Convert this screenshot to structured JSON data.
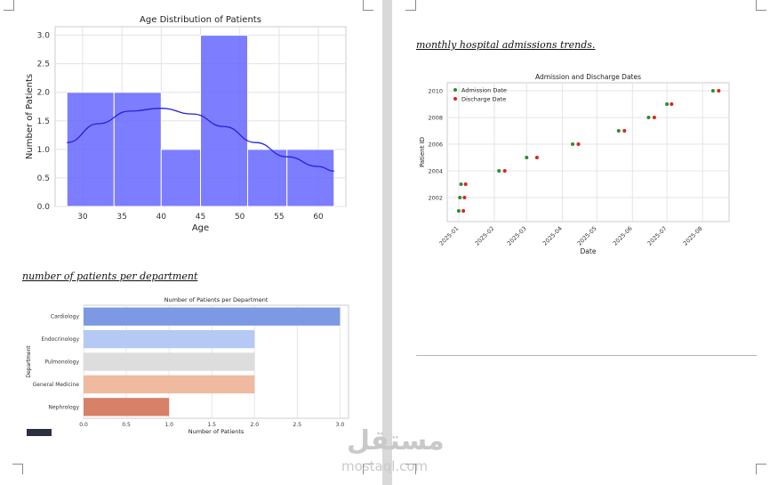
{
  "captions": {
    "admissions": "monthly hospital admissions trends.",
    "departments": "number of patients per department"
  },
  "watermark": {
    "arabic": "مستقل",
    "latin": "mostaql.com"
  },
  "chart_data": [
    {
      "type": "histogram",
      "title": "Age Distribution of Patients",
      "xlabel": "Age",
      "ylabel": "Number of Patients",
      "bins": [
        {
          "from": 28,
          "to": 34,
          "count": 2
        },
        {
          "from": 34,
          "to": 40,
          "count": 2
        },
        {
          "from": 40,
          "to": 45,
          "count": 1
        },
        {
          "from": 45,
          "to": 51,
          "count": 3
        },
        {
          "from": 51,
          "to": 56,
          "count": 1
        },
        {
          "from": 56,
          "to": 62,
          "count": 1
        }
      ],
      "kde": {
        "x": [
          28,
          32,
          36,
          40,
          44,
          48,
          52,
          56,
          60,
          62
        ],
        "y": [
          1.12,
          1.45,
          1.67,
          1.72,
          1.62,
          1.4,
          1.12,
          0.87,
          0.7,
          0.62
        ]
      },
      "xlim": [
        26.5,
        63.5
      ],
      "ylim": [
        0,
        3.15
      ],
      "xticks": [
        30,
        35,
        40,
        45,
        50,
        55,
        60
      ],
      "yticks": [
        0,
        0.5,
        1.0,
        1.5,
        2.0,
        2.5,
        3.0
      ],
      "ytick_labels": [
        "0.0",
        "0.5",
        "1.0",
        "1.5",
        "2.0",
        "2.5",
        "3.0"
      ],
      "grid": true,
      "color": "#6666ff",
      "kde_color": "#2222dd"
    },
    {
      "type": "scatter",
      "title": "Admission and Discharge Dates",
      "xlabel": "Date",
      "ylabel": "Patient ID",
      "series": [
        {
          "name": "Admission Date",
          "color": "#2e8b2e",
          "points": [
            [
              "2025-01-01",
              2001
            ],
            [
              "2025-01-02",
              2002
            ],
            [
              "2025-01-03",
              2003
            ],
            [
              "2025-02-05",
              2004
            ],
            [
              "2025-03-01",
              2005
            ],
            [
              "2025-04-10",
              2006
            ],
            [
              "2025-05-20",
              2007
            ],
            [
              "2025-06-15",
              2008
            ],
            [
              "2025-07-01",
              2009
            ],
            [
              "2025-08-10",
              2010
            ]
          ]
        },
        {
          "name": "Discharge Date",
          "color": "#dd2222",
          "points": [
            [
              "2025-01-05",
              2001
            ],
            [
              "2025-01-06",
              2002
            ],
            [
              "2025-01-07",
              2003
            ],
            [
              "2025-02-10",
              2004
            ],
            [
              "2025-03-10",
              2005
            ],
            [
              "2025-04-15",
              2006
            ],
            [
              "2025-05-25",
              2007
            ],
            [
              "2025-06-20",
              2008
            ],
            [
              "2025-07-05",
              2009
            ],
            [
              "2025-08-15",
              2010
            ]
          ]
        }
      ],
      "xlim": [
        "2024-12-22",
        "2025-08-24"
      ],
      "ylim": [
        2000.2,
        2010.6
      ],
      "xticks": [
        "2025-01",
        "2025-02",
        "2025-03",
        "2025-04",
        "2025-05",
        "2025-06",
        "2025-07",
        "2025-08"
      ],
      "yticks": [
        2002,
        2004,
        2006,
        2008,
        2010
      ],
      "legend": "top-left",
      "grid": true
    },
    {
      "type": "bar",
      "orientation": "horizontal",
      "title": "Number of Patients per Department",
      "xlabel": "Number of Patients",
      "ylabel": "Department",
      "categories": [
        "Cardiology",
        "Endocrinology",
        "Pulmonology",
        "General Medicine",
        "Nephrology"
      ],
      "values": [
        3,
        2,
        2,
        2,
        1
      ],
      "colors": [
        "#7d99e4",
        "#b4c9f3",
        "#dddddd",
        "#efbaa0",
        "#d88068"
      ],
      "xlim": [
        0,
        3.1
      ],
      "xticks": [
        0,
        0.5,
        1.0,
        1.5,
        2.0,
        2.5,
        3.0
      ],
      "xtick_labels": [
        "0.0",
        "0.5",
        "1.0",
        "1.5",
        "2.0",
        "2.5",
        "3.0"
      ],
      "grid": true
    }
  ]
}
